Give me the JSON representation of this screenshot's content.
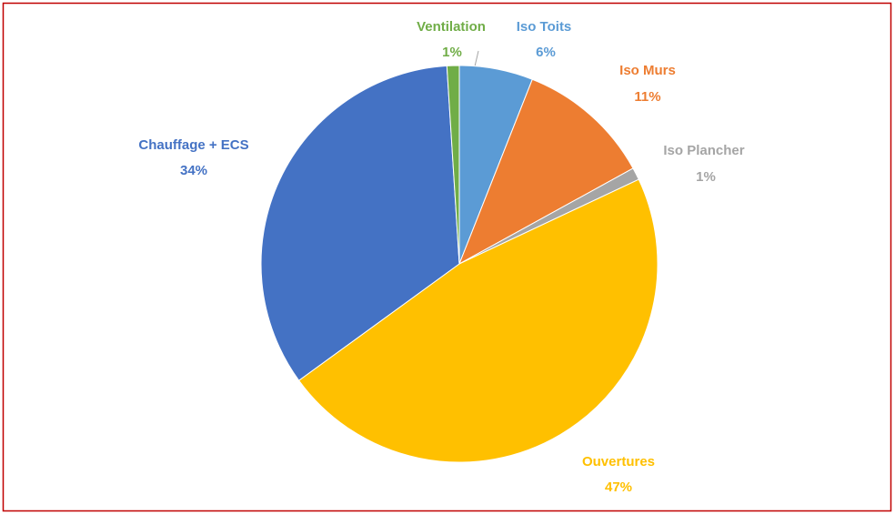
{
  "chart_data": {
    "type": "pie",
    "categories": [
      "Iso Toits",
      "Iso Murs",
      "Iso Plancher",
      "Ouvertures",
      "Chauffage + ECS",
      "Ventilation"
    ],
    "values": [
      6,
      11,
      1,
      47,
      34,
      1
    ],
    "value_labels": [
      "6%",
      "11%",
      "1%",
      "47%",
      "34%",
      "1%"
    ],
    "colors": [
      "#5b9bd5",
      "#ed7d31",
      "#a5a5a5",
      "#ffc000",
      "#4472c4",
      "#70ad47"
    ]
  }
}
